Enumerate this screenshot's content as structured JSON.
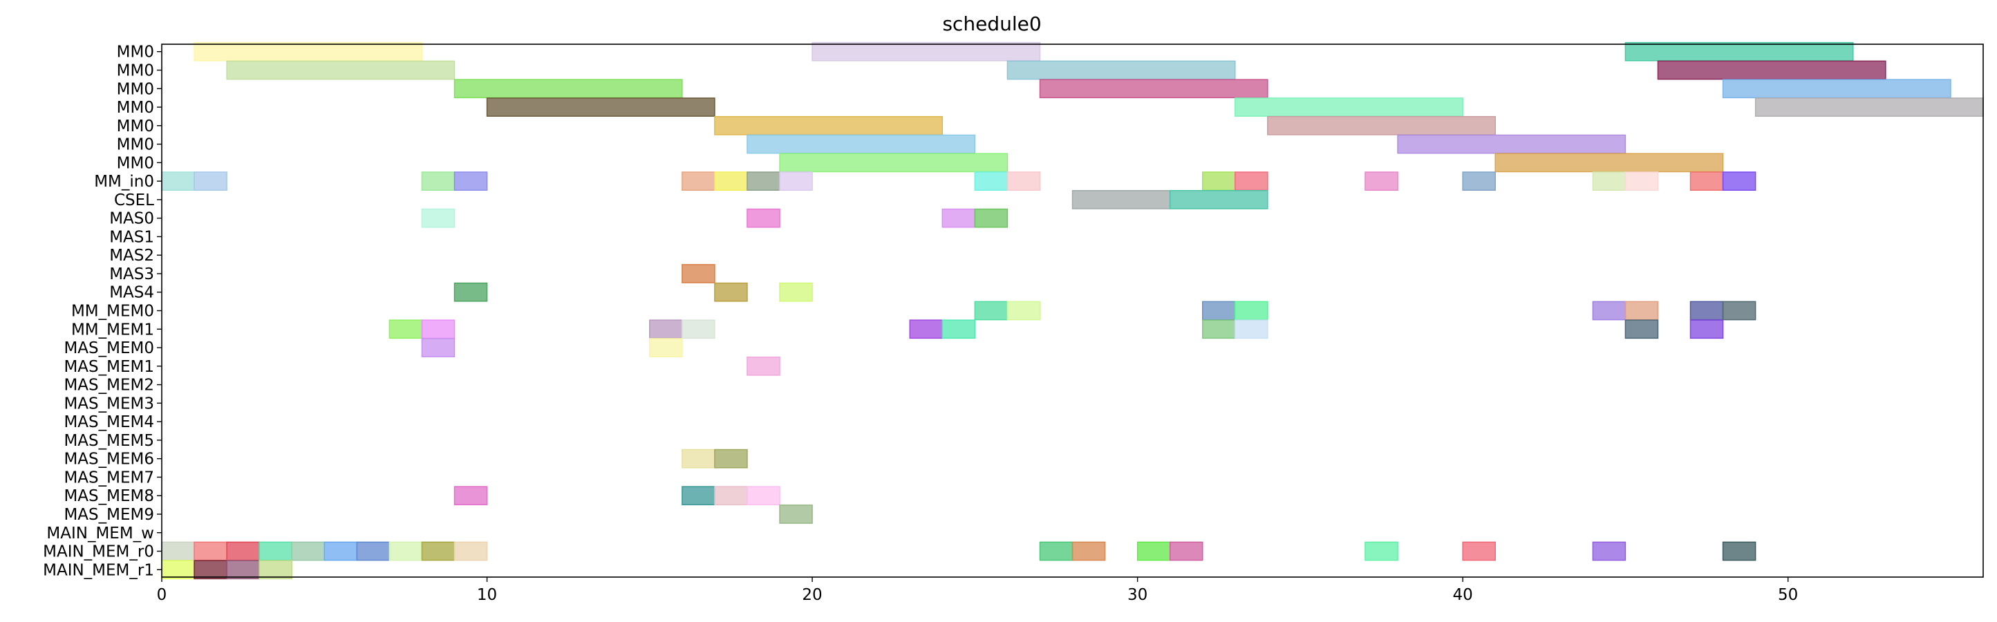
{
  "chart_data": {
    "type": "gantt",
    "title": "schedule0",
    "xlabel": "",
    "ylabel": "",
    "xlim": [
      0,
      56
    ],
    "x_ticks": [
      0,
      10,
      20,
      30,
      40,
      50
    ],
    "grid": false,
    "rows": [
      "MM0",
      "MM0",
      "MM0",
      "MM0",
      "MM0",
      "MM0",
      "MM0",
      "MM_in0",
      "CSEL",
      "MAS0",
      "MAS1",
      "MAS2",
      "MAS3",
      "MAS4",
      "MM_MEM0",
      "MM_MEM1",
      "MAS_MEM0",
      "MAS_MEM1",
      "MAS_MEM2",
      "MAS_MEM3",
      "MAS_MEM4",
      "MAS_MEM5",
      "MAS_MEM6",
      "MAS_MEM7",
      "MAS_MEM8",
      "MAS_MEM9",
      "MAIN_MEM_w",
      "MAIN_MEM_r0",
      "MAIN_MEM_r1"
    ],
    "tasks": [
      {
        "row": 0,
        "start": 1,
        "end": 8,
        "color": "#fff6a8"
      },
      {
        "row": 0,
        "start": 20,
        "end": 27,
        "color": "#d7c8e6"
      },
      {
        "row": 0,
        "start": 45,
        "end": 52,
        "color": "#45c9a3"
      },
      {
        "row": 1,
        "start": 2,
        "end": 9,
        "color": "#c3e0a0"
      },
      {
        "row": 1,
        "start": 26,
        "end": 33,
        "color": "#8fc5d2"
      },
      {
        "row": 1,
        "start": 46,
        "end": 53,
        "color": "#8a2a5c"
      },
      {
        "row": 2,
        "start": 9,
        "end": 16,
        "color": "#7fe05c"
      },
      {
        "row": 2,
        "start": 27,
        "end": 34,
        "color": "#c9588f"
      },
      {
        "row": 2,
        "start": 48,
        "end": 55,
        "color": "#7ab4ea"
      },
      {
        "row": 3,
        "start": 10,
        "end": 17,
        "color": "#6b5a3a"
      },
      {
        "row": 3,
        "start": 33,
        "end": 40,
        "color": "#7ff2b8"
      },
      {
        "row": 3,
        "start": 49,
        "end": 56,
        "color": "#b0aeb0"
      },
      {
        "row": 4,
        "start": 17,
        "end": 24,
        "color": "#e0b84e"
      },
      {
        "row": 4,
        "start": 34,
        "end": 41,
        "color": "#cc9c9e"
      },
      {
        "row": 5,
        "start": 18,
        "end": 25,
        "color": "#8ccbe8"
      },
      {
        "row": 5,
        "start": 38,
        "end": 45,
        "color": "#b08ee0"
      },
      {
        "row": 6,
        "start": 19,
        "end": 26,
        "color": "#8ef07c"
      },
      {
        "row": 6,
        "start": 41,
        "end": 48,
        "color": "#d9a552"
      },
      {
        "row": 7,
        "start": 0,
        "end": 1,
        "color": "#a2e0d9"
      },
      {
        "row": 7,
        "start": 1,
        "end": 2,
        "color": "#a8c8ea"
      },
      {
        "row": 7,
        "start": 8,
        "end": 9,
        "color": "#9ee89a"
      },
      {
        "row": 7,
        "start": 9,
        "end": 10,
        "color": "#8c8cec"
      },
      {
        "row": 7,
        "start": 16,
        "end": 17,
        "color": "#e8a484"
      },
      {
        "row": 7,
        "start": 17,
        "end": 18,
        "color": "#f2ee5a"
      },
      {
        "row": 7,
        "start": 18,
        "end": 19,
        "color": "#8ca08a"
      },
      {
        "row": 7,
        "start": 19,
        "end": 20,
        "color": "#dcc8f0"
      },
      {
        "row": 7,
        "start": 25,
        "end": 26,
        "color": "#6cf0e0"
      },
      {
        "row": 7,
        "start": 26,
        "end": 27,
        "color": "#f8c8cc"
      },
      {
        "row": 7,
        "start": 32,
        "end": 33,
        "color": "#a8e05a"
      },
      {
        "row": 7,
        "start": 33,
        "end": 34,
        "color": "#f06c7c"
      },
      {
        "row": 7,
        "start": 37,
        "end": 38,
        "color": "#e888c8"
      },
      {
        "row": 7,
        "start": 40,
        "end": 41,
        "color": "#80a4c8"
      },
      {
        "row": 7,
        "start": 44,
        "end": 45,
        "color": "#d4e8b0"
      },
      {
        "row": 7,
        "start": 45,
        "end": 46,
        "color": "#fcd8d8"
      },
      {
        "row": 7,
        "start": 47,
        "end": 48,
        "color": "#f07070"
      },
      {
        "row": 7,
        "start": 48,
        "end": 49,
        "color": "#7a4cf0"
      },
      {
        "row": 8,
        "start": 28,
        "end": 31,
        "color": "#a0aaa8"
      },
      {
        "row": 8,
        "start": 31,
        "end": 34,
        "color": "#4cc4a8"
      },
      {
        "row": 9,
        "start": 8,
        "end": 9,
        "color": "#b4f4dc"
      },
      {
        "row": 9,
        "start": 18,
        "end": 19,
        "color": "#e878d0"
      },
      {
        "row": 9,
        "start": 24,
        "end": 25,
        "color": "#d890f0"
      },
      {
        "row": 9,
        "start": 25,
        "end": 26,
        "color": "#6cc460"
      },
      {
        "row": 12,
        "start": 16,
        "end": 17,
        "color": "#d88048"
      },
      {
        "row": 13,
        "start": 9,
        "end": 10,
        "color": "#4ca460"
      },
      {
        "row": 13,
        "start": 17,
        "end": 18,
        "color": "#b8a040"
      },
      {
        "row": 13,
        "start": 19,
        "end": 20,
        "color": "#d0f878"
      },
      {
        "row": 14,
        "start": 25,
        "end": 26,
        "color": "#50dca0"
      },
      {
        "row": 14,
        "start": 26,
        "end": 27,
        "color": "#d4f898"
      },
      {
        "row": 14,
        "start": 32,
        "end": 33,
        "color": "#6890c0"
      },
      {
        "row": 14,
        "start": 33,
        "end": 34,
        "color": "#58f098"
      },
      {
        "row": 14,
        "start": 44,
        "end": 45,
        "color": "#a080e0"
      },
      {
        "row": 14,
        "start": 45,
        "end": 46,
        "color": "#e0a080"
      },
      {
        "row": 14,
        "start": 47,
        "end": 48,
        "color": "#5058a0"
      },
      {
        "row": 14,
        "start": 48,
        "end": 49,
        "color": "#506870"
      },
      {
        "row": 15,
        "start": 7,
        "end": 8,
        "color": "#90f060"
      },
      {
        "row": 15,
        "start": 8,
        "end": 9,
        "color": "#e890f8"
      },
      {
        "row": 15,
        "start": 15,
        "end": 16,
        "color": "#b898c0"
      },
      {
        "row": 15,
        "start": 16,
        "end": 17,
        "color": "#d8e4d8"
      },
      {
        "row": 15,
        "start": 23,
        "end": 24,
        "color": "#a048e0"
      },
      {
        "row": 15,
        "start": 24,
        "end": 25,
        "color": "#50e8b0"
      },
      {
        "row": 15,
        "start": 32,
        "end": 33,
        "color": "#80c880"
      },
      {
        "row": 15,
        "start": 33,
        "end": 34,
        "color": "#c8e0f4"
      },
      {
        "row": 15,
        "start": 45,
        "end": 46,
        "color": "#4c6878"
      },
      {
        "row": 15,
        "start": 47,
        "end": 48,
        "color": "#8048e0"
      },
      {
        "row": 16,
        "start": 8,
        "end": 9,
        "color": "#c890f0"
      },
      {
        "row": 16,
        "start": 15,
        "end": 16,
        "color": "#f8f4a8"
      },
      {
        "row": 17,
        "start": 18,
        "end": 19,
        "color": "#f0a8dc"
      },
      {
        "row": 22,
        "start": 16,
        "end": 17,
        "color": "#e8e0a0"
      },
      {
        "row": 22,
        "start": 17,
        "end": 18,
        "color": "#a0a860"
      },
      {
        "row": 24,
        "start": 9,
        "end": 10,
        "color": "#e070c8"
      },
      {
        "row": 24,
        "start": 16,
        "end": 17,
        "color": "#3c9898"
      },
      {
        "row": 24,
        "start": 17,
        "end": 18,
        "color": "#e8c0c8"
      },
      {
        "row": 24,
        "start": 18,
        "end": 19,
        "color": "#fcc0f0"
      },
      {
        "row": 25,
        "start": 19,
        "end": 20,
        "color": "#98b888"
      },
      {
        "row": 27,
        "start": 0,
        "end": 1,
        "color": "#c8d4c0"
      },
      {
        "row": 27,
        "start": 1,
        "end": 2,
        "color": "#f07878"
      },
      {
        "row": 27,
        "start": 2,
        "end": 3,
        "color": "#e04858"
      },
      {
        "row": 27,
        "start": 3,
        "end": 4,
        "color": "#58e0a8"
      },
      {
        "row": 27,
        "start": 4,
        "end": 5,
        "color": "#98c8a8"
      },
      {
        "row": 27,
        "start": 5,
        "end": 6,
        "color": "#68a8f0"
      },
      {
        "row": 27,
        "start": 6,
        "end": 7,
        "color": "#6088d0"
      },
      {
        "row": 27,
        "start": 7,
        "end": 8,
        "color": "#d4f4b0"
      },
      {
        "row": 27,
        "start": 8,
        "end": 9,
        "color": "#a8a840"
      },
      {
        "row": 27,
        "start": 9,
        "end": 10,
        "color": "#ecd4b0"
      },
      {
        "row": 27,
        "start": 27,
        "end": 28,
        "color": "#48c878"
      },
      {
        "row": 27,
        "start": 28,
        "end": 29,
        "color": "#d88850"
      },
      {
        "row": 27,
        "start": 30,
        "end": 31,
        "color": "#60e848"
      },
      {
        "row": 27,
        "start": 31,
        "end": 32,
        "color": "#d060a0"
      },
      {
        "row": 27,
        "start": 37,
        "end": 38,
        "color": "#60f0a8"
      },
      {
        "row": 27,
        "start": 40,
        "end": 41,
        "color": "#f06878"
      },
      {
        "row": 27,
        "start": 44,
        "end": 45,
        "color": "#9060e0"
      },
      {
        "row": 27,
        "start": 48,
        "end": 49,
        "color": "#3c5c60"
      },
      {
        "row": 28,
        "start": 0,
        "end": 1,
        "color": "#e0fc60"
      },
      {
        "row": 28,
        "start": 1,
        "end": 2,
        "color": "#782838"
      },
      {
        "row": 28,
        "start": 2,
        "end": 3,
        "color": "#905878"
      },
      {
        "row": 28,
        "start": 3,
        "end": 4,
        "color": "#c0dc88"
      }
    ]
  }
}
